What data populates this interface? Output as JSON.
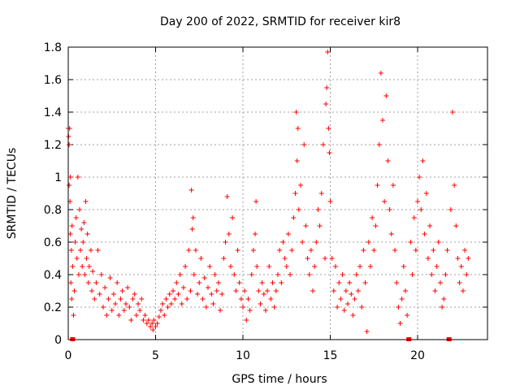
{
  "chart_data": {
    "type": "scatter",
    "title": "Day 200 of 2022, SRMTID for receiver kir8",
    "xlabel": "GPS time / hours",
    "ylabel": "SRMTID / TECUs",
    "xlim": [
      0,
      24
    ],
    "ylim": [
      0,
      1.8
    ],
    "xticks": [
      0,
      5,
      10,
      15,
      20
    ],
    "xtick_labels": [
      "0",
      "5",
      "10",
      "15",
      "20"
    ],
    "yticks": [
      0,
      0.2,
      0.4,
      0.6,
      0.8,
      1.0,
      1.2,
      1.4,
      1.6,
      1.8
    ],
    "ytick_labels": [
      "0",
      "0.2",
      "0.4",
      "0.6",
      "0.8",
      "1",
      "1.2",
      "1.4",
      "1.6",
      "1.8"
    ],
    "grid": true,
    "marker": "plus",
    "color": "#ff0000",
    "series": [
      {
        "name": "SRMTID",
        "points": [
          [
            0.0,
            1.3
          ],
          [
            0.02,
            1.25
          ],
          [
            0.05,
            1.2
          ],
          [
            0.05,
            0.95
          ],
          [
            0.08,
            1.3
          ],
          [
            0.1,
            0.85
          ],
          [
            0.12,
            1.0
          ],
          [
            0.12,
            0.65
          ],
          [
            0.15,
            0.35
          ],
          [
            0.18,
            0.55
          ],
          [
            0.2,
            0.25
          ],
          [
            0.22,
            0.7
          ],
          [
            0.25,
            0.45
          ],
          [
            0.25,
            0.0
          ],
          [
            0.3,
            0.15
          ],
          [
            0.35,
            0.3
          ],
          [
            0.4,
            0.6
          ],
          [
            0.45,
            0.75
          ],
          [
            0.5,
            0.5
          ],
          [
            0.55,
            1.0
          ],
          [
            0.6,
            0.4
          ],
          [
            0.65,
            0.8
          ],
          [
            0.7,
            0.55
          ],
          [
            0.75,
            0.68
          ],
          [
            0.8,
            0.45
          ],
          [
            0.85,
            0.6
          ],
          [
            0.9,
            0.72
          ],
          [
            0.95,
            0.4
          ],
          [
            1.0,
            0.85
          ],
          [
            1.05,
            0.5
          ],
          [
            1.1,
            0.65
          ],
          [
            1.15,
            0.35
          ],
          [
            1.2,
            0.45
          ],
          [
            1.3,
            0.55
          ],
          [
            1.35,
            0.3
          ],
          [
            1.4,
            0.42
          ],
          [
            1.5,
            0.25
          ],
          [
            1.6,
            0.35
          ],
          [
            1.7,
            0.55
          ],
          [
            1.8,
            0.28
          ],
          [
            1.9,
            0.4
          ],
          [
            2.0,
            0.2
          ],
          [
            2.1,
            0.32
          ],
          [
            2.2,
            0.15
          ],
          [
            2.3,
            0.25
          ],
          [
            2.4,
            0.38
          ],
          [
            2.5,
            0.18
          ],
          [
            2.6,
            0.28
          ],
          [
            2.7,
            0.22
          ],
          [
            2.8,
            0.35
          ],
          [
            2.9,
            0.15
          ],
          [
            3.0,
            0.25
          ],
          [
            3.1,
            0.3
          ],
          [
            3.2,
            0.18
          ],
          [
            3.3,
            0.22
          ],
          [
            3.4,
            0.32
          ],
          [
            3.5,
            0.2
          ],
          [
            3.6,
            0.12
          ],
          [
            3.7,
            0.25
          ],
          [
            3.8,
            0.28
          ],
          [
            3.9,
            0.15
          ],
          [
            4.0,
            0.22
          ],
          [
            4.1,
            0.18
          ],
          [
            4.2,
            0.25
          ],
          [
            4.3,
            0.12
          ],
          [
            4.4,
            0.15
          ],
          [
            4.5,
            0.1
          ],
          [
            4.6,
            0.12
          ],
          [
            4.7,
            0.08
          ],
          [
            4.8,
            0.1
          ],
          [
            4.85,
            0.06
          ],
          [
            4.9,
            0.12
          ],
          [
            5.0,
            0.08
          ],
          [
            5.1,
            0.1
          ],
          [
            5.2,
            0.14
          ],
          [
            5.3,
            0.18
          ],
          [
            5.4,
            0.22
          ],
          [
            5.5,
            0.15
          ],
          [
            5.6,
            0.25
          ],
          [
            5.7,
            0.2
          ],
          [
            5.8,
            0.28
          ],
          [
            5.9,
            0.22
          ],
          [
            6.0,
            0.3
          ],
          [
            6.1,
            0.25
          ],
          [
            6.2,
            0.35
          ],
          [
            6.3,
            0.28
          ],
          [
            6.4,
            0.4
          ],
          [
            6.5,
            0.22
          ],
          [
            6.6,
            0.32
          ],
          [
            6.7,
            0.45
          ],
          [
            6.8,
            0.25
          ],
          [
            6.9,
            0.55
          ],
          [
            7.0,
            0.3
          ],
          [
            7.05,
            0.92
          ],
          [
            7.1,
            0.68
          ],
          [
            7.15,
            0.75
          ],
          [
            7.2,
            0.4
          ],
          [
            7.3,
            0.55
          ],
          [
            7.4,
            0.28
          ],
          [
            7.5,
            0.35
          ],
          [
            7.6,
            0.5
          ],
          [
            7.7,
            0.25
          ],
          [
            7.8,
            0.38
          ],
          [
            7.9,
            0.2
          ],
          [
            8.0,
            0.32
          ],
          [
            8.1,
            0.45
          ],
          [
            8.2,
            0.28
          ],
          [
            8.3,
            0.22
          ],
          [
            8.4,
            0.4
          ],
          [
            8.5,
            0.3
          ],
          [
            8.6,
            0.35
          ],
          [
            8.7,
            0.18
          ],
          [
            8.8,
            0.28
          ],
          [
            8.9,
            0.5
          ],
          [
            9.0,
            0.6
          ],
          [
            9.1,
            0.88
          ],
          [
            9.2,
            0.65
          ],
          [
            9.3,
            0.45
          ],
          [
            9.4,
            0.75
          ],
          [
            9.5,
            0.4
          ],
          [
            9.6,
            0.3
          ],
          [
            9.7,
            0.55
          ],
          [
            9.8,
            0.35
          ],
          [
            9.9,
            0.25
          ],
          [
            10.0,
            0.2
          ],
          [
            10.1,
            0.3
          ],
          [
            10.2,
            0.12
          ],
          [
            10.3,
            0.25
          ],
          [
            10.4,
            0.18
          ],
          [
            10.5,
            0.4
          ],
          [
            10.6,
            0.55
          ],
          [
            10.7,
            0.65
          ],
          [
            10.75,
            0.85
          ],
          [
            10.8,
            0.45
          ],
          [
            10.9,
            0.3
          ],
          [
            11.0,
            0.22
          ],
          [
            11.1,
            0.35
          ],
          [
            11.2,
            0.28
          ],
          [
            11.3,
            0.18
          ],
          [
            11.4,
            0.3
          ],
          [
            11.5,
            0.45
          ],
          [
            11.6,
            0.25
          ],
          [
            11.7,
            0.35
          ],
          [
            11.8,
            0.2
          ],
          [
            11.9,
            0.3
          ],
          [
            12.0,
            0.4
          ],
          [
            12.1,
            0.55
          ],
          [
            12.2,
            0.35
          ],
          [
            12.3,
            0.6
          ],
          [
            12.4,
            0.5
          ],
          [
            12.5,
            0.45
          ],
          [
            12.6,
            0.65
          ],
          [
            12.7,
            0.4
          ],
          [
            12.8,
            0.55
          ],
          [
            12.9,
            0.75
          ],
          [
            13.0,
            0.9
          ],
          [
            13.05,
            1.4
          ],
          [
            13.1,
            1.1
          ],
          [
            13.15,
            1.3
          ],
          [
            13.2,
            0.8
          ],
          [
            13.3,
            0.95
          ],
          [
            13.4,
            0.6
          ],
          [
            13.5,
            1.2
          ],
          [
            13.6,
            0.7
          ],
          [
            13.7,
            0.5
          ],
          [
            13.8,
            0.4
          ],
          [
            13.9,
            0.55
          ],
          [
            14.0,
            0.3
          ],
          [
            14.1,
            0.45
          ],
          [
            14.2,
            0.6
          ],
          [
            14.3,
            0.8
          ],
          [
            14.4,
            0.7
          ],
          [
            14.5,
            0.9
          ],
          [
            14.6,
            1.2
          ],
          [
            14.7,
            0.5
          ],
          [
            14.75,
            1.45
          ],
          [
            14.8,
            1.55
          ],
          [
            14.85,
            1.77
          ],
          [
            14.9,
            1.3
          ],
          [
            14.95,
            1.15
          ],
          [
            15.0,
            0.85
          ],
          [
            15.1,
            0.5
          ],
          [
            15.2,
            0.3
          ],
          [
            15.3,
            0.45
          ],
          [
            15.4,
            0.2
          ],
          [
            15.5,
            0.35
          ],
          [
            15.6,
            0.25
          ],
          [
            15.7,
            0.4
          ],
          [
            15.8,
            0.18
          ],
          [
            15.9,
            0.3
          ],
          [
            16.0,
            0.22
          ],
          [
            16.1,
            0.35
          ],
          [
            16.2,
            0.28
          ],
          [
            16.3,
            0.15
          ],
          [
            16.4,
            0.25
          ],
          [
            16.5,
            0.4
          ],
          [
            16.6,
            0.3
          ],
          [
            16.7,
            0.45
          ],
          [
            16.8,
            0.2
          ],
          [
            16.9,
            0.55
          ],
          [
            17.0,
            0.35
          ],
          [
            17.1,
            0.05
          ],
          [
            17.2,
            0.6
          ],
          [
            17.3,
            0.45
          ],
          [
            17.4,
            0.75
          ],
          [
            17.5,
            0.55
          ],
          [
            17.6,
            0.7
          ],
          [
            17.7,
            0.95
          ],
          [
            17.8,
            1.2
          ],
          [
            17.9,
            1.64
          ],
          [
            18.0,
            1.35
          ],
          [
            18.1,
            0.85
          ],
          [
            18.2,
            1.5
          ],
          [
            18.3,
            1.1
          ],
          [
            18.4,
            0.8
          ],
          [
            18.5,
            0.65
          ],
          [
            18.6,
            0.95
          ],
          [
            18.7,
            0.55
          ],
          [
            18.8,
            0.35
          ],
          [
            18.9,
            0.2
          ],
          [
            19.0,
            0.1
          ],
          [
            19.1,
            0.25
          ],
          [
            19.2,
            0.45
          ],
          [
            19.3,
            0.3
          ],
          [
            19.4,
            0.15
          ],
          [
            19.5,
            0.0
          ],
          [
            19.6,
            0.6
          ],
          [
            19.7,
            0.4
          ],
          [
            19.8,
            0.75
          ],
          [
            19.9,
            0.55
          ],
          [
            20.0,
            0.85
          ],
          [
            20.1,
            1.0
          ],
          [
            20.2,
            0.8
          ],
          [
            20.3,
            1.1
          ],
          [
            20.4,
            0.65
          ],
          [
            20.5,
            0.9
          ],
          [
            20.6,
            0.5
          ],
          [
            20.7,
            0.7
          ],
          [
            20.8,
            0.4
          ],
          [
            20.9,
            0.55
          ],
          [
            21.0,
            0.3
          ],
          [
            21.1,
            0.45
          ],
          [
            21.2,
            0.6
          ],
          [
            21.3,
            0.35
          ],
          [
            21.4,
            0.2
          ],
          [
            21.5,
            0.25
          ],
          [
            21.6,
            0.4
          ],
          [
            21.7,
            0.55
          ],
          [
            21.8,
            0.0
          ],
          [
            21.9,
            0.8
          ],
          [
            22.0,
            1.4
          ],
          [
            22.1,
            0.95
          ],
          [
            22.2,
            0.7
          ],
          [
            22.3,
            0.5
          ],
          [
            22.4,
            0.35
          ],
          [
            22.5,
            0.45
          ],
          [
            22.6,
            0.3
          ],
          [
            22.7,
            0.55
          ],
          [
            22.8,
            0.4
          ],
          [
            22.9,
            0.5
          ]
        ]
      }
    ]
  }
}
